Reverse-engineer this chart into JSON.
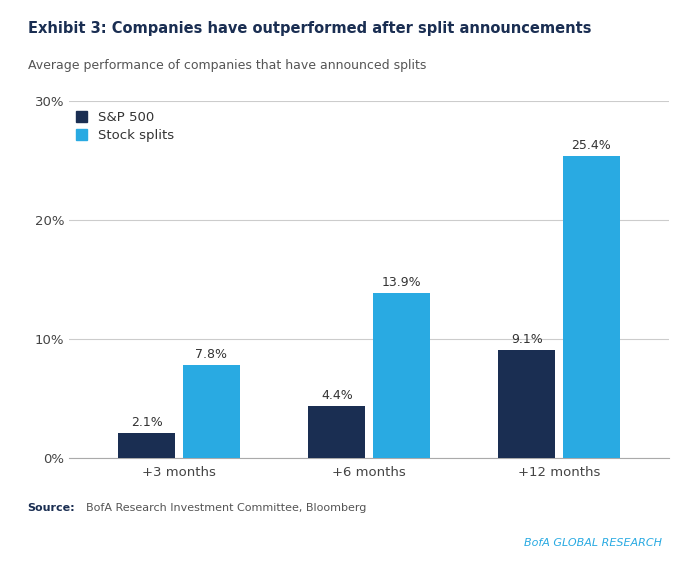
{
  "title": "Exhibit 3: Companies have outperformed after split announcements",
  "subtitle": "Average performance of companies that have announced splits",
  "categories": [
    "+3 months",
    "+6 months",
    "+12 months"
  ],
  "sp500_values": [
    2.1,
    4.4,
    9.1
  ],
  "splits_values": [
    7.8,
    13.9,
    25.4
  ],
  "sp500_labels": [
    "2.1%",
    "4.4%",
    "9.1%"
  ],
  "splits_labels": [
    "7.8%",
    "13.9%",
    "25.4%"
  ],
  "sp500_color": "#1a2e52",
  "splits_color": "#29aae2",
  "background_color": "#ffffff",
  "ylim": [
    0,
    30
  ],
  "yticks": [
    0,
    10,
    20,
    30
  ],
  "ytick_labels": [
    "0%",
    "10%",
    "20%",
    "30%"
  ],
  "legend_sp500": "S&P 500",
  "legend_splits": "Stock splits",
  "branding_text": "BofA GLOBAL RESEARCH",
  "title_color": "#1a2e52",
  "subtitle_color": "#555555",
  "source_label_color": "#1a2e52",
  "source_body_color": "#555555",
  "branding_color": "#29aae2",
  "accent_color": "#2b6cb8",
  "label_color": "#333333"
}
